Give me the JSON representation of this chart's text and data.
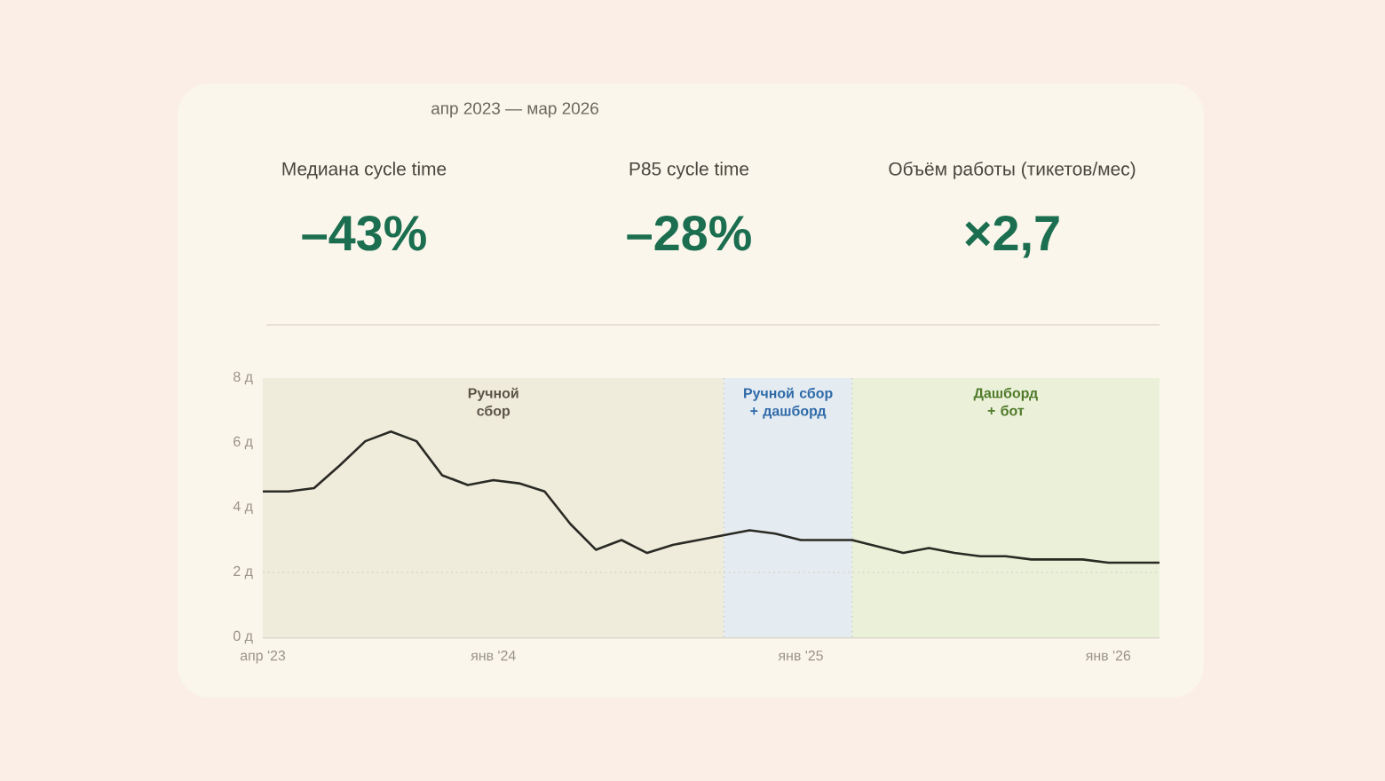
{
  "chart_data": [
    {
      "type": "other",
      "title": "апр 2023 — мар 2026",
      "annotations": [
        "Медиана cycle time",
        "–43%",
        "P85 cycle time",
        "–28%",
        "Объём работы (тикетов/мес)",
        "×2,7"
      ]
    },
    {
      "type": "line",
      "x": [
        "2023-04",
        "2023-05",
        "2023-06",
        "2023-07",
        "2023-08",
        "2023-09",
        "2023-10",
        "2023-11",
        "2023-12",
        "2024-01",
        "2024-02",
        "2024-03",
        "2024-04",
        "2024-05",
        "2024-06",
        "2024-07",
        "2024-08",
        "2024-09",
        "2024-10",
        "2024-11",
        "2024-12",
        "2025-01",
        "2025-02",
        "2025-03",
        "2025-04",
        "2025-05",
        "2025-06",
        "2025-07",
        "2025-08",
        "2025-09",
        "2025-10",
        "2025-11",
        "2025-12",
        "2026-01",
        "2026-02",
        "2026-03"
      ],
      "series": [
        {
          "color": "#2a2a24",
          "values": [
            4.5,
            4.5,
            4.6,
            5.3,
            6.05,
            6.35,
            6.05,
            5.0,
            4.7,
            4.85,
            4.75,
            4.5,
            3.5,
            2.7,
            3.0,
            2.6,
            2.85,
            3.0,
            3.15,
            3.3,
            3.2,
            3.0,
            3.0,
            3.0,
            2.8,
            2.6,
            2.75,
            2.6,
            2.5,
            2.5,
            2.4,
            2.4,
            2.4,
            2.3,
            2.3,
            2.3
          ]
        }
      ],
      "xlim": [
        "2023-04",
        "2026-03"
      ],
      "xticks": [
        {
          "value": "2023-04",
          "label": "апр '23"
        },
        {
          "value": "2024-01",
          "label": "янв '24"
        },
        {
          "value": "2025-01",
          "label": "янв '25"
        },
        {
          "value": "2026-01",
          "label": "янв '26"
        }
      ],
      "ylim": [
        0,
        8
      ],
      "yticks": [
        {
          "value": 0,
          "label": "0 д"
        },
        {
          "value": 2,
          "label": "2 д"
        },
        {
          "value": 4,
          "label": "4 д"
        },
        {
          "value": 6,
          "label": "6 д"
        },
        {
          "value": 8,
          "label": "8 д"
        }
      ],
      "bands": [
        {
          "axis": "x",
          "from": "2023-04",
          "to": "2024-10",
          "label": "Ручной сбор",
          "color": "#efecdc"
        },
        {
          "axis": "x",
          "from": "2024-10",
          "to": "2025-03",
          "label": "Ручной сбор + дашборд",
          "color": "#e4ecf2"
        },
        {
          "axis": "x",
          "from": "2025-03",
          "to": "2026-03",
          "label": "Дашборд + бот",
          "color": "#ebf1d9"
        }
      ],
      "ref_lines": [
        {
          "axis": "y",
          "value": 2,
          "color": "#d6d1c0",
          "line_style": "dotted"
        },
        {
          "axis": "x",
          "value": "2024-10",
          "color": "#cfd3d6",
          "line_style": "dotted"
        },
        {
          "axis": "x",
          "value": "2025-03",
          "color": "#cfd3d6",
          "line_style": "dotted"
        }
      ],
      "marker": "none",
      "line_style": "solid"
    }
  ]
}
